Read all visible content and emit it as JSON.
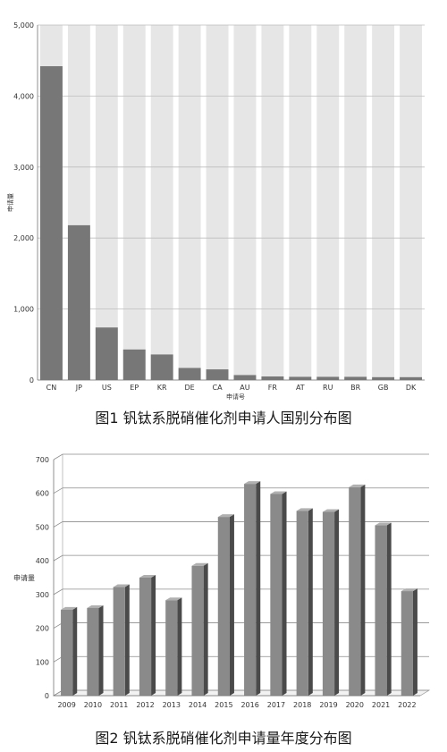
{
  "chart_data": [
    {
      "type": "bar",
      "categories": [
        "CN",
        "JP",
        "US",
        "EP",
        "KR",
        "DE",
        "CA",
        "AU",
        "FR",
        "AT",
        "RU",
        "BR",
        "GB",
        "DK"
      ],
      "values": [
        4420,
        2180,
        740,
        430,
        360,
        170,
        150,
        70,
        50,
        45,
        45,
        45,
        40,
        40
      ],
      "xlabel": "申请号",
      "ylabel": "申请量",
      "ylim": [
        0,
        5000
      ],
      "yticks": [
        "0",
        "1,000",
        "2,000",
        "3,000",
        "4,000",
        "5,000"
      ],
      "yticks_values": [
        0,
        1000,
        2000,
        3000,
        4000,
        5000
      ],
      "grid": true,
      "colors": {
        "bar": "#777777",
        "band": "#e6e6e6",
        "grid": "#bdbdbd"
      }
    },
    {
      "type": "bar",
      "categories": [
        "2009",
        "2010",
        "2011",
        "2012",
        "2013",
        "2014",
        "2015",
        "2016",
        "2017",
        "2018",
        "2019",
        "2020",
        "2021",
        "2022"
      ],
      "values": [
        255,
        260,
        322,
        350,
        283,
        385,
        530,
        628,
        598,
        548,
        545,
        618,
        505,
        310
      ],
      "ylabel": "申请量",
      "ylim": [
        0,
        700
      ],
      "yticks": [
        "0",
        "100",
        "200",
        "300",
        "400",
        "500",
        "600",
        "700"
      ],
      "yticks_values": [
        0,
        100,
        200,
        300,
        400,
        500,
        600,
        700
      ],
      "grid": true,
      "style": "3d",
      "colors": {
        "bar": "#8a8a8a",
        "bar_side": "#4a4a4a",
        "bar_top": "#b0b0b0",
        "grid": "#8c8c8c"
      }
    }
  ],
  "captions": {
    "fig1": "图1 钒钛系脱硝催化剂申请人国别分布图",
    "fig2": "图2 钒钛系脱硝催化剂申请量年度分布图"
  }
}
